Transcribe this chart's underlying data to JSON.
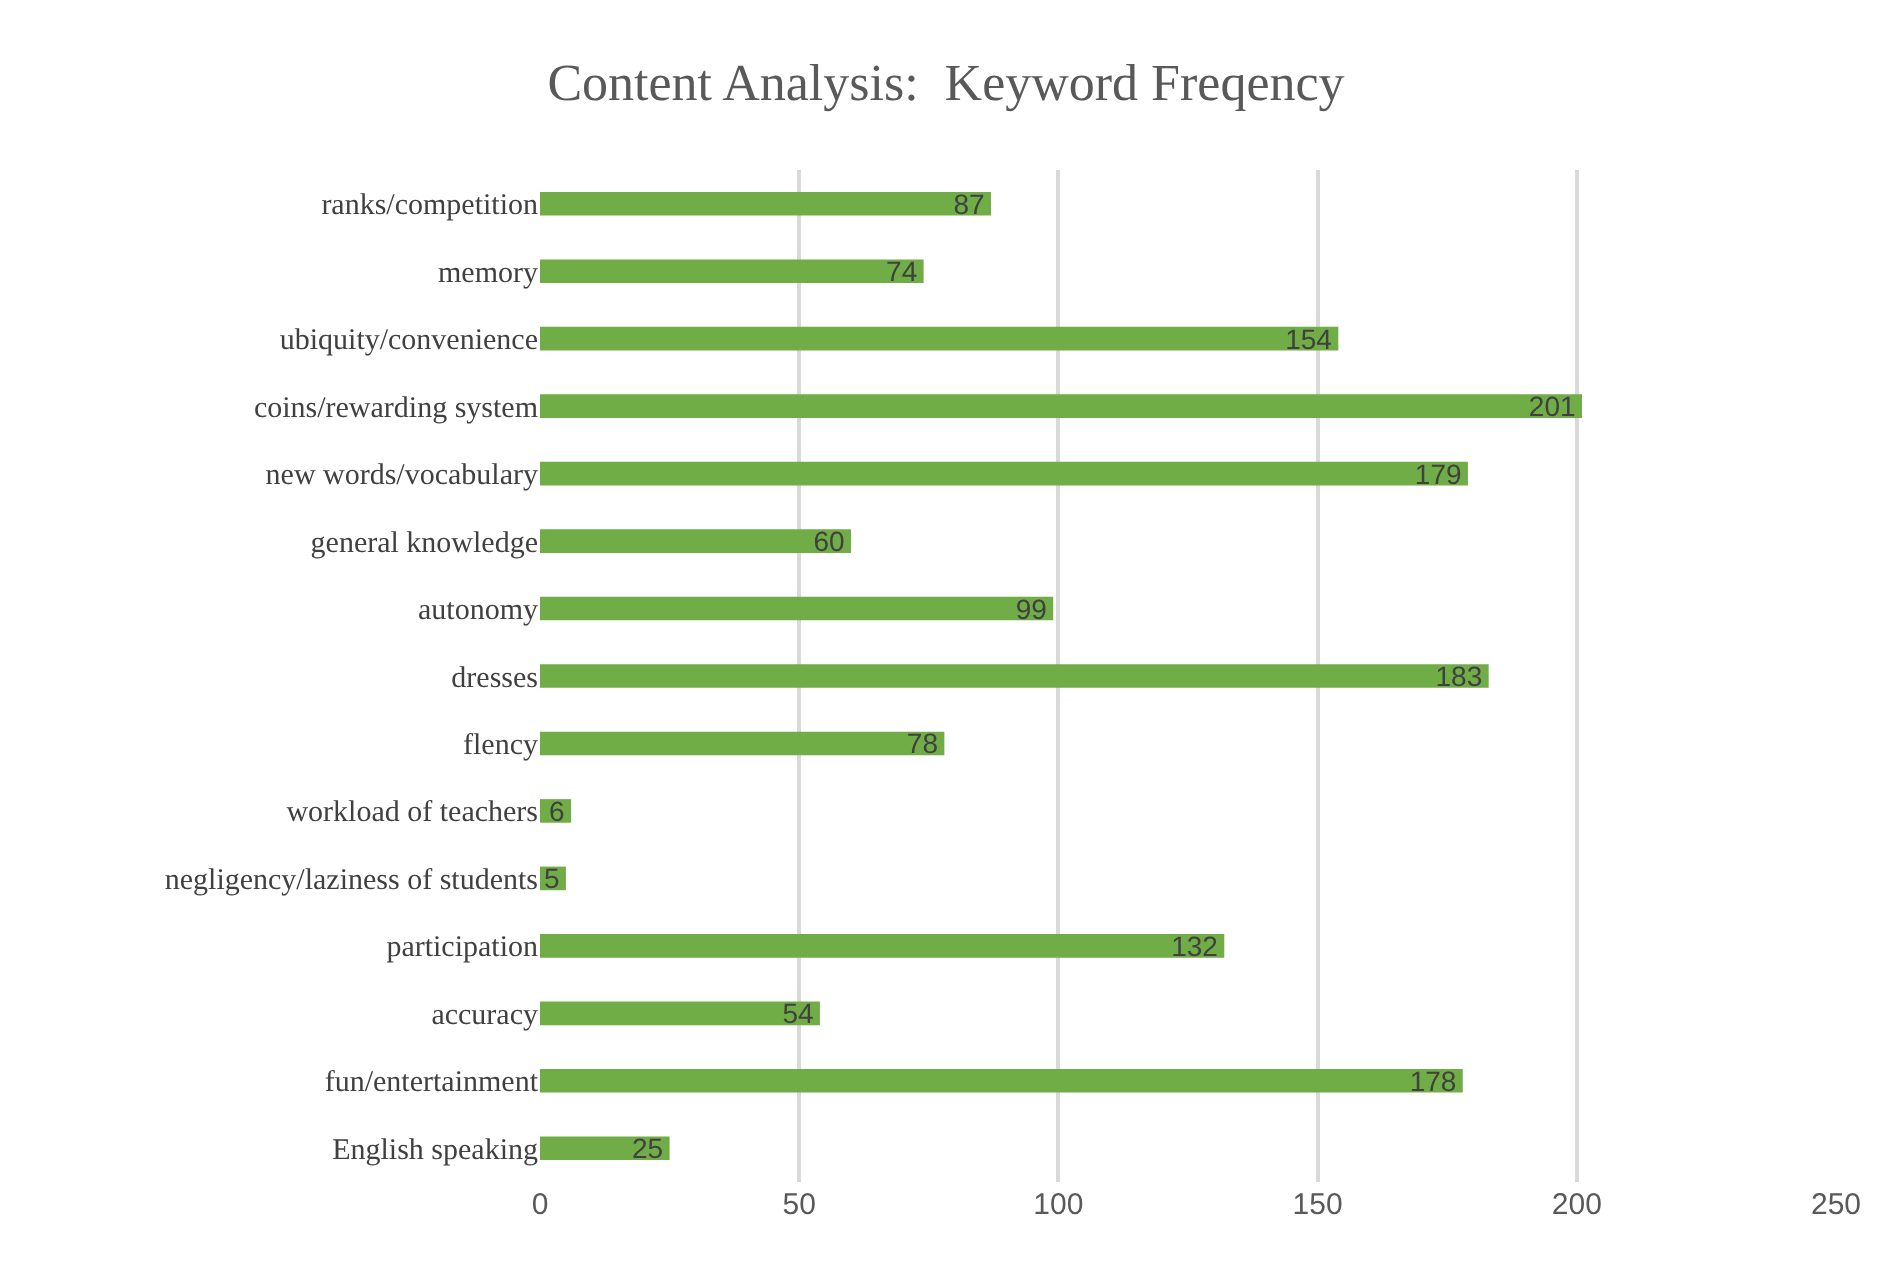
{
  "chart_data": {
    "type": "bar",
    "orientation": "horizontal",
    "title": "Content Analysis:  Keyword Freqency",
    "categories": [
      "ranks/competition",
      "memory",
      "ubiquity/convenience",
      "coins/rewarding system",
      "new words/vocabulary",
      "general knowledge",
      "autonomy",
      "dresses",
      "flency",
      "workload of teachers",
      "negligency/laziness of students",
      "participation",
      "accuracy",
      "fun/entertainment",
      "English speaking"
    ],
    "values": [
      87,
      74,
      154,
      201,
      179,
      60,
      99,
      183,
      78,
      6,
      5,
      132,
      54,
      178,
      25
    ],
    "color": "#70ad47",
    "xlim": [
      0,
      250
    ],
    "xticks": [
      0,
      50,
      100,
      150,
      200,
      250
    ],
    "grid": "x",
    "data_labels": true
  }
}
